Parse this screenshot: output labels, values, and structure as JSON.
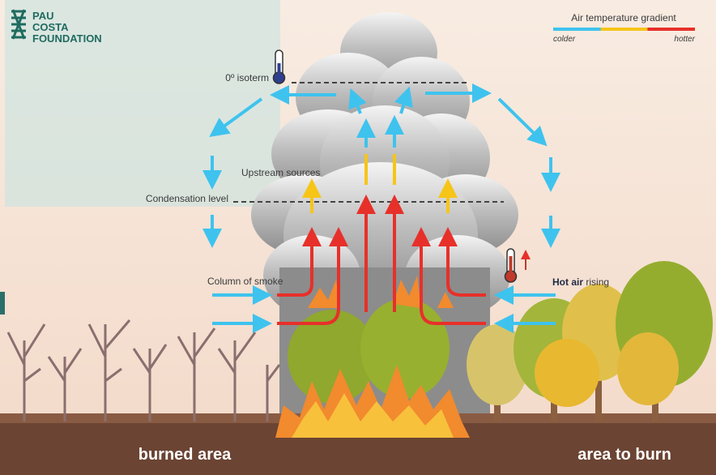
{
  "logo": {
    "lines": [
      "PAU",
      "COSTA",
      "FOUNDATION"
    ]
  },
  "legend": {
    "title": "Air temperature gradient",
    "low": "colder",
    "high": "hotter"
  },
  "labels": {
    "isotherm": "0º isoterm",
    "upstream": "Upstream sources",
    "condensation": "Condensation level",
    "column": "Column of smoke",
    "hot_air_bold": "Hot air",
    "hot_air_rest": "rising"
  },
  "ground": {
    "left": "burned area",
    "right": "area to burn"
  }
}
